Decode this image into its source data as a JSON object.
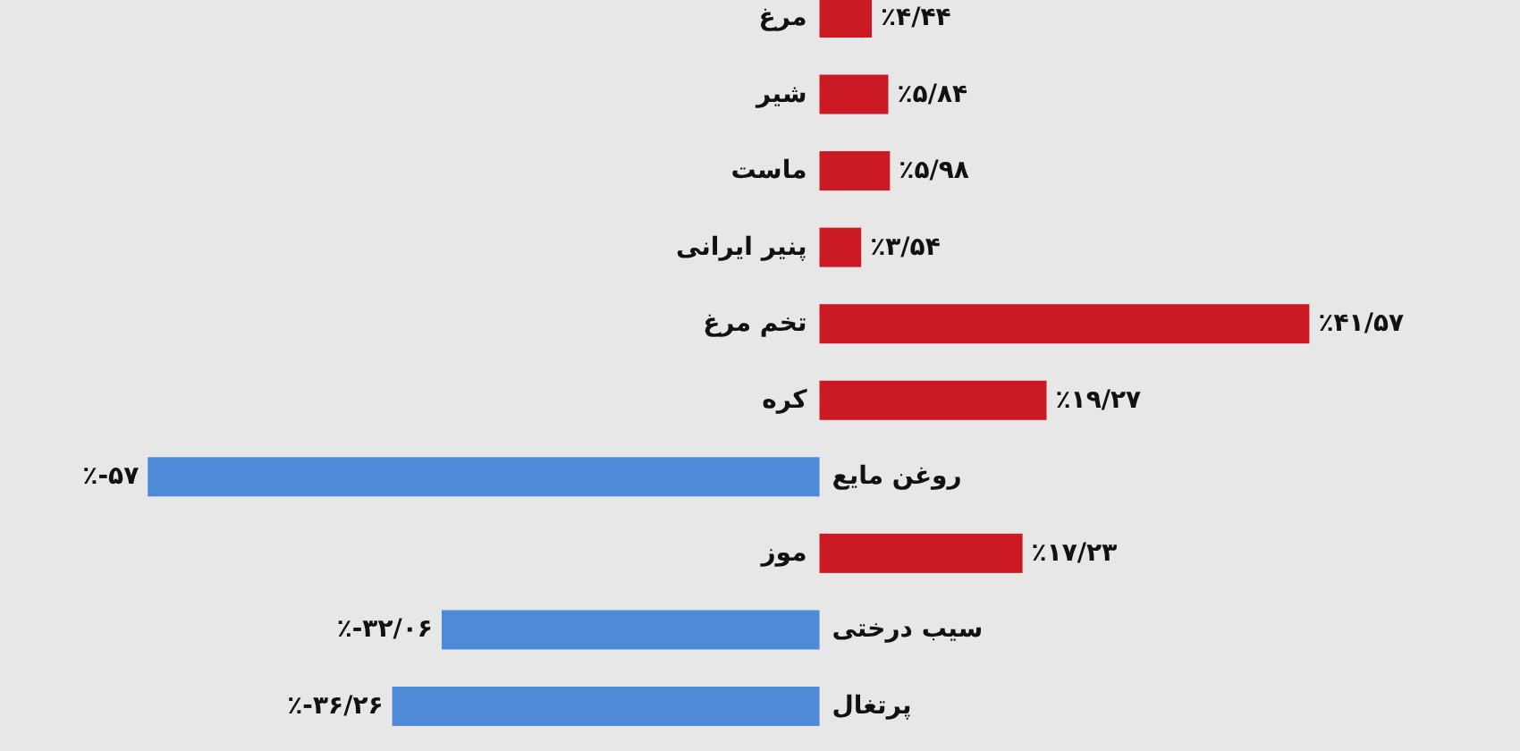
{
  "chart_data": {
    "type": "bar",
    "orientation": "horizontal",
    "categories": [
      "مرغ",
      "شیر",
      "ماست",
      "پنیر ایرانی",
      "تخم مرغ",
      "کره",
      "روغن مایع",
      "موز",
      "سیب درختی",
      "پرتغال"
    ],
    "values": [
      4.44,
      5.84,
      5.98,
      3.54,
      41.57,
      19.27,
      -57,
      17.23,
      -32.06,
      -36.26
    ],
    "colors": [
      "#cc1a24",
      "#cc1a24",
      "#cc1a24",
      "#cc1a24",
      "#cc1a24",
      "#cc1a24",
      "#4e8ad8",
      "#cc1a24",
      "#4e8ad8",
      "#4e8ad8"
    ],
    "value_labels": [
      "٪۴/۴۴",
      "٪۵/۸۴",
      "٪۵/۹۸",
      "٪۳/۵۴",
      "٪۴۱/۵۷",
      "٪۱۹/۲۷",
      "٪-۵۷",
      "٪۱۷/۲۳",
      "٪-۳۲/۰۶",
      "٪-۳۶/۲۶"
    ]
  }
}
